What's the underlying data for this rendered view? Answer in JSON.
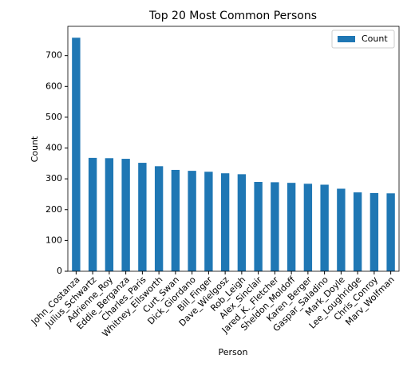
{
  "chart_data": {
    "type": "bar",
    "title": "Top 20 Most Common Persons",
    "x_label": "Person",
    "y_label": "Count",
    "categories": [
      "John_Costanza",
      "Julius_Schwartz",
      "Adrienne_Roy",
      "Eddie_Berganza",
      "Charles_Paris",
      "Whitney_Ellsworth",
      "Curt_Swan",
      "Dick_Giordano",
      "Bill_Finger",
      "Dave_Wielgosz",
      "Rob_Leigh",
      "Alex_Sinclair",
      "Jared_K._Fletcher",
      "Sheldon_Moldoff",
      "Karen_Berger",
      "Gaspar_Saladino",
      "Mark_Doyle",
      "Lee_Loughridge",
      "Chris_Conroy",
      "Marv_Wolfman"
    ],
    "series": [
      {
        "name": "Count",
        "color": "#1f77b4",
        "values": [
          758,
          368,
          367,
          365,
          352,
          341,
          329,
          326,
          323,
          318,
          315,
          290,
          289,
          287,
          284,
          281,
          268,
          256,
          254,
          253
        ]
      }
    ],
    "ylim": [
      0,
      795
    ],
    "yticks": [
      0,
      100,
      200,
      300,
      400,
      500,
      600,
      700
    ],
    "legend": "upper right"
  }
}
